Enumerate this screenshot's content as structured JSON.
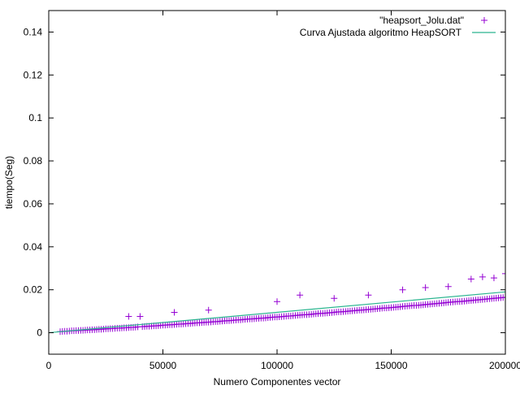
{
  "chart_data": {
    "type": "scatter",
    "title": "",
    "xlabel": "Numero Componentes vector",
    "ylabel": "tiempo(Seg)",
    "xlim": [
      0,
      200000
    ],
    "ylim": [
      -0.01,
      0.15
    ],
    "x_ticks": [
      0,
      50000,
      100000,
      150000,
      200000
    ],
    "x_tick_labels": [
      "0",
      "50000",
      "100000",
      "150000",
      "200000"
    ],
    "y_ticks": [
      0,
      0.02,
      0.04,
      0.06,
      0.08,
      0.1,
      0.12,
      0.14
    ],
    "y_tick_labels": [
      "0",
      "0.02",
      "0.04",
      "0.06",
      "0.08",
      "0.1",
      "0.12",
      "0.14"
    ],
    "grid": false,
    "legend_position": "top-right",
    "series": [
      {
        "name": "\"heapsort_Jolu.dat\"",
        "kind": "scatter",
        "marker": "plus",
        "color": "#9400d3",
        "x_start": 5000,
        "x_step": 1000,
        "values": [
          0.0005,
          0.0006,
          0.0007,
          0.0007,
          0.0008,
          0.0009,
          0.0009,
          0.001,
          0.001,
          0.0011,
          0.0011,
          0.0012,
          0.0013,
          0.0013,
          0.0014,
          0.0014,
          0.0015,
          0.0016,
          0.0016,
          0.0017,
          0.0018,
          0.0018,
          0.0019,
          0.0019,
          0.002,
          0.0021,
          0.0021,
          0.0022,
          0.0023,
          0.0023,
          0.0024,
          0.0025,
          0.0025,
          0.0026,
          0.0027,
          0.0076,
          0.0028,
          0.0029,
          0.003,
          0.003,
          0.0031,
          0.0032,
          0.0032,
          0.0033,
          0.0034,
          0.0035,
          0.0035,
          0.0036,
          0.0037,
          0.0037,
          0.0038,
          0.0039,
          0.004,
          0.004,
          0.0041,
          0.0042,
          0.0043,
          0.0043,
          0.0044,
          0.0045,
          0.0046,
          0.0046,
          0.0047,
          0.0048,
          0.0049,
          0.0049,
          0.005,
          0.0051,
          0.0052,
          0.0052,
          0.0053,
          0.0054,
          0.0055,
          0.0056,
          0.0056,
          0.0057,
          0.0058,
          0.0059,
          0.006,
          0.006,
          0.0061,
          0.0062,
          0.0063,
          0.0064,
          0.0064,
          0.0065,
          0.0066,
          0.0067,
          0.0068,
          0.0068,
          0.0069,
          0.007,
          0.0071,
          0.0072,
          0.0073,
          0.0073,
          0.0074,
          0.0075,
          0.0076,
          0.0077,
          0.0078,
          0.0078,
          0.0079,
          0.008,
          0.0081,
          0.0082,
          0.0083,
          0.0084,
          0.0084,
          0.0085,
          0.0086,
          0.0087,
          0.0088,
          0.0089,
          0.009,
          0.009,
          0.0091,
          0.0092,
          0.0093,
          0.0094,
          0.0095,
          0.0096,
          0.0097,
          0.0097,
          0.0098,
          0.0099,
          0.01,
          0.0101,
          0.0102,
          0.0103,
          0.0104,
          0.0105,
          0.0105,
          0.0106,
          0.0107,
          0.0108,
          0.0109,
          0.011,
          0.0111,
          0.0112,
          0.0113,
          0.0114,
          0.0115,
          0.0115,
          0.0116,
          0.0117,
          0.0118,
          0.0119,
          0.012,
          0.0121,
          0.0122,
          0.0123,
          0.0124,
          0.0125,
          0.0126,
          0.0127,
          0.0127,
          0.0128,
          0.0129,
          0.013,
          0.0131,
          0.0132,
          0.0133,
          0.0134,
          0.0135,
          0.0136,
          0.0137,
          0.0138,
          0.0139,
          0.014,
          0.0141,
          0.0142,
          0.0143,
          0.0144,
          0.0145,
          0.0145,
          0.0146,
          0.0147,
          0.0148,
          0.0149,
          0.015,
          0.0151,
          0.0152,
          0.0153,
          0.0154,
          0.0155,
          0.0156,
          0.0157,
          0.0158,
          0.0159,
          0.016,
          0.0161,
          0.0162,
          0.0163,
          0.0164,
          0.0165
        ],
        "highlights": [
          {
            "x": 35000,
            "y": 0.0076
          },
          {
            "x": 55000,
            "y": 0.0095
          },
          {
            "x": 70000,
            "y": 0.0105
          },
          {
            "x": 100000,
            "y": 0.0145
          },
          {
            "x": 110000,
            "y": 0.0175
          },
          {
            "x": 125000,
            "y": 0.016
          },
          {
            "x": 140000,
            "y": 0.0175
          },
          {
            "x": 155000,
            "y": 0.02
          },
          {
            "x": 165000,
            "y": 0.021
          },
          {
            "x": 175000,
            "y": 0.0215
          },
          {
            "x": 185000,
            "y": 0.025
          },
          {
            "x": 190000,
            "y": 0.026
          },
          {
            "x": 195000,
            "y": 0.0255
          },
          {
            "x": 200000,
            "y": 0.0275
          }
        ]
      },
      {
        "name": "Curva Ajustada algoritmo HeapSORT",
        "kind": "line",
        "color": "#2ab58f",
        "x": [
          0,
          200000
        ],
        "y": [
          0.0,
          0.019
        ]
      }
    ]
  }
}
